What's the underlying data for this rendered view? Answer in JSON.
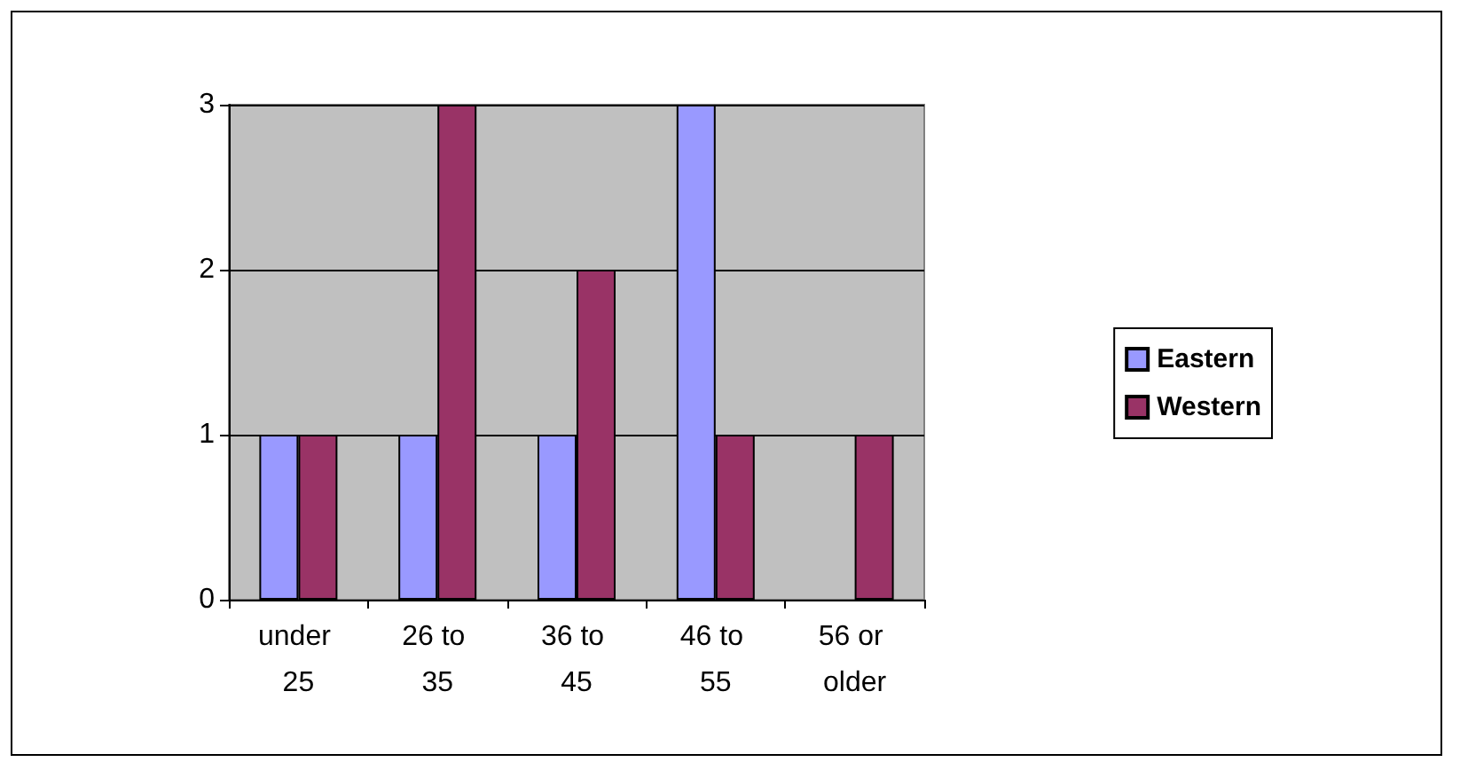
{
  "chart_data": {
    "type": "bar",
    "categories": [
      "under 25",
      "26 to 35",
      "36 to 45",
      "46 to 55",
      "56 or older"
    ],
    "series": [
      {
        "name": "Eastern",
        "color": "#9999ff",
        "values": [
          1,
          1,
          1,
          3,
          0
        ]
      },
      {
        "name": "Western",
        "color": "#993366",
        "values": [
          1,
          3,
          2,
          1,
          1
        ]
      }
    ],
    "ylim": [
      0,
      3
    ],
    "yticks": [
      0,
      1,
      2,
      3
    ],
    "grid": "y",
    "legend": "right"
  }
}
